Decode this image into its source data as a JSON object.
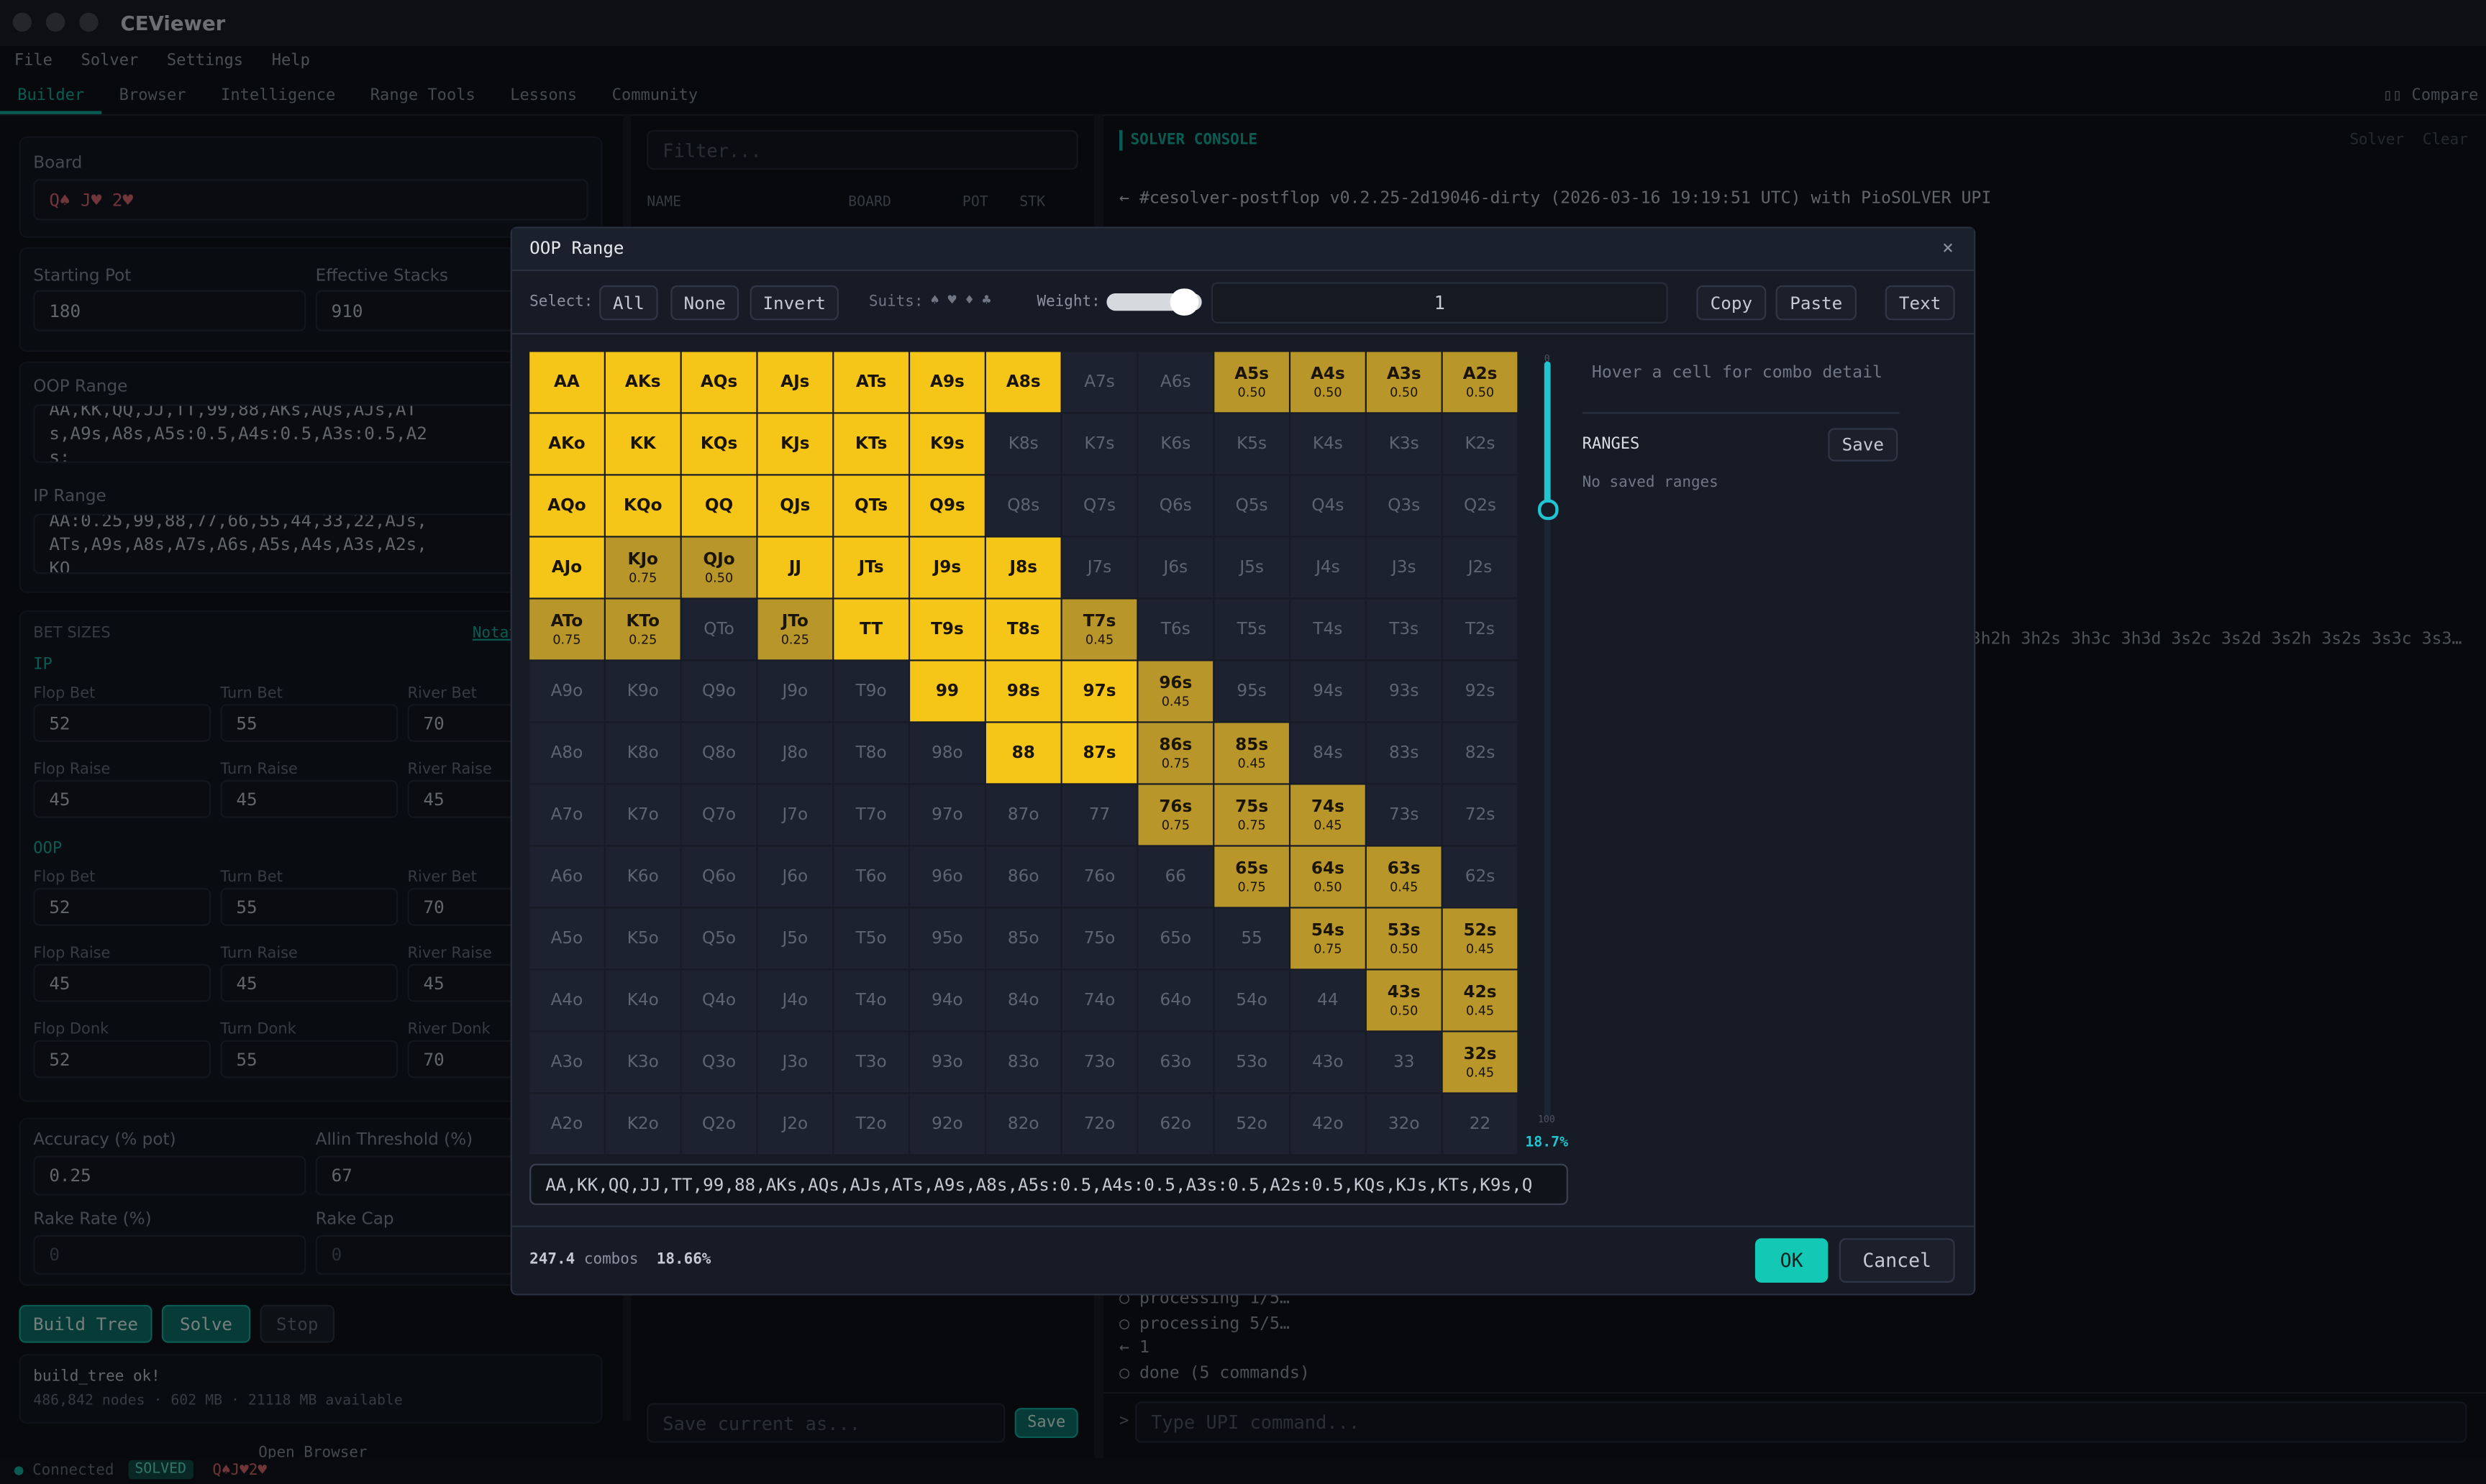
{
  "window": {
    "title": "CEViewer"
  },
  "menu": [
    "File",
    "Solver",
    "Settings",
    "Help"
  ],
  "tabs": [
    "Builder",
    "Browser",
    "Intelligence",
    "Range Tools",
    "Lessons",
    "Community"
  ],
  "compare": "Compare",
  "left": {
    "board_label": "Board",
    "board": "Q♠ J♥ 2♥",
    "starting_pot_label": "Starting Pot",
    "starting_pot": "180",
    "effective_stacks_label": "Effective Stacks",
    "effective_stacks": "910",
    "oop_range_label": "OOP Range",
    "oop_range": "AA,KK,QQ,JJ,TT,99,88,AKs,AQs,AJs,ATs,A9s,A8s,A5s:0.5,A4s:0.5,A3s:0.5,A2s:",
    "ip_range_label": "IP Range",
    "ip_range": "AA:0.25,99,88,77,66,55,44,33,22,AJs,ATs,A9s,A8s,A7s,A6s,A5s,A4s,A3s,A2s,KQ",
    "bet_sizes": "BET SIZES",
    "notation": "Notation",
    "ip_label": "IP",
    "ip_bets": [
      {
        "label": "Flop Bet",
        "value": "52"
      },
      {
        "label": "Turn Bet",
        "value": "55"
      },
      {
        "label": "River Bet",
        "value": "70"
      },
      {
        "label": "Flop Raise",
        "value": "45"
      },
      {
        "label": "Turn Raise",
        "value": "45"
      },
      {
        "label": "River Raise",
        "value": "45"
      }
    ],
    "oop_label": "OOP",
    "oop_bets": [
      {
        "label": "Flop Bet",
        "value": "52"
      },
      {
        "label": "Turn Bet",
        "value": "55"
      },
      {
        "label": "River Bet",
        "value": "70"
      },
      {
        "label": "Flop Raise",
        "value": "45"
      },
      {
        "label": "Turn Raise",
        "value": "45"
      },
      {
        "label": "River Raise",
        "value": "45"
      },
      {
        "label": "Flop Donk",
        "value": "52"
      },
      {
        "label": "Turn Donk",
        "value": "55"
      },
      {
        "label": "River Donk",
        "value": "70"
      }
    ],
    "accuracy_label": "Accuracy (% pot)",
    "accuracy": "0.25",
    "allin_label": "Allin Threshold (%)",
    "allin": "67",
    "rake_rate_label": "Rake Rate (%)",
    "rake_rate": "0",
    "rake_cap_label": "Rake Cap",
    "rake_cap": "0",
    "build_tree": "Build Tree",
    "solve": "Solve",
    "stop": "Stop",
    "log": [
      "build_tree ok!",
      "486,842 nodes · 602 MB · 21118 MB available"
    ],
    "open_browser": "Open Browser"
  },
  "middle": {
    "filter": "Filter...",
    "columns": [
      "NAME",
      "BOARD",
      "POT",
      "STK"
    ],
    "save_as": "Save current as...",
    "save": "Save"
  },
  "console": {
    "title": "SOLVER CONSOLE",
    "solver": "Solver",
    "clear": "Clear",
    "header_line": "← #cesolver-postflop v0.2.25-2d19046-dirty (2026-03-16 19:19:51 UTC) with PioSOLVER UPI",
    "combo_line": "3h2h 3h2s 3h3c 3h3d 3s2c 3s2d 3s2h 3s2s 3s3c 3s3…",
    "lines": [
      "○ processing 1/5…",
      "○ processing 5/5…",
      "← 1",
      "○ done (5 commands)"
    ],
    "prompt": ">",
    "input": "Type UPI command..."
  },
  "status": {
    "connected": "Connected",
    "solved": "SOLVED",
    "board": "Q♠J♥2♥"
  },
  "modal": {
    "title": "OOP Range",
    "close": "×",
    "select": "Select:",
    "all": "All",
    "none": "None",
    "invert": "Invert",
    "suits_label": "Suits:",
    "suits": "♠ ♥ ♦ ♣",
    "weight_label": "Weight:",
    "weight": "1",
    "copy": "Copy",
    "paste": "Paste",
    "text": "Text",
    "palette": {
      "in": "#f5c518",
      "part": "#b9962a",
      "out": "#1d2230"
    },
    "grid": [
      [
        {
          "label": "AA",
          "state": "in"
        },
        {
          "label": "AKs",
          "state": "in"
        },
        {
          "label": "AQs",
          "state": "in"
        },
        {
          "label": "AJs",
          "state": "in"
        },
        {
          "label": "ATs",
          "state": "in"
        },
        {
          "label": "A9s",
          "state": "in"
        },
        {
          "label": "A8s",
          "state": "in"
        },
        {
          "label": "A7s",
          "state": "out"
        },
        {
          "label": "A6s",
          "state": "out"
        },
        {
          "label": "A5s",
          "state": "part",
          "weight": "0.50"
        },
        {
          "label": "A4s",
          "state": "part",
          "weight": "0.50"
        },
        {
          "label": "A3s",
          "state": "part",
          "weight": "0.50"
        },
        {
          "label": "A2s",
          "state": "part",
          "weight": "0.50"
        }
      ],
      [
        {
          "label": "AKo",
          "state": "in"
        },
        {
          "label": "KK",
          "state": "in"
        },
        {
          "label": "KQs",
          "state": "in"
        },
        {
          "label": "KJs",
          "state": "in"
        },
        {
          "label": "KTs",
          "state": "in"
        },
        {
          "label": "K9s",
          "state": "in"
        },
        {
          "label": "K8s",
          "state": "out"
        },
        {
          "label": "K7s",
          "state": "out"
        },
        {
          "label": "K6s",
          "state": "out"
        },
        {
          "label": "K5s",
          "state": "out"
        },
        {
          "label": "K4s",
          "state": "out"
        },
        {
          "label": "K3s",
          "state": "out"
        },
        {
          "label": "K2s",
          "state": "out"
        }
      ],
      [
        {
          "label": "AQo",
          "state": "in"
        },
        {
          "label": "KQo",
          "state": "in"
        },
        {
          "label": "QQ",
          "state": "in"
        },
        {
          "label": "QJs",
          "state": "in"
        },
        {
          "label": "QTs",
          "state": "in"
        },
        {
          "label": "Q9s",
          "state": "in"
        },
        {
          "label": "Q8s",
          "state": "out"
        },
        {
          "label": "Q7s",
          "state": "out"
        },
        {
          "label": "Q6s",
          "state": "out"
        },
        {
          "label": "Q5s",
          "state": "out"
        },
        {
          "label": "Q4s",
          "state": "out"
        },
        {
          "label": "Q3s",
          "state": "out"
        },
        {
          "label": "Q2s",
          "state": "out"
        }
      ],
      [
        {
          "label": "AJo",
          "state": "in"
        },
        {
          "label": "KJo",
          "state": "part",
          "weight": "0.75"
        },
        {
          "label": "QJo",
          "state": "part",
          "weight": "0.50"
        },
        {
          "label": "JJ",
          "state": "in"
        },
        {
          "label": "JTs",
          "state": "in"
        },
        {
          "label": "J9s",
          "state": "in"
        },
        {
          "label": "J8s",
          "state": "in"
        },
        {
          "label": "J7s",
          "state": "out"
        },
        {
          "label": "J6s",
          "state": "out"
        },
        {
          "label": "J5s",
          "state": "out"
        },
        {
          "label": "J4s",
          "state": "out"
        },
        {
          "label": "J3s",
          "state": "out"
        },
        {
          "label": "J2s",
          "state": "out"
        }
      ],
      [
        {
          "label": "ATo",
          "state": "part",
          "weight": "0.75"
        },
        {
          "label": "KTo",
          "state": "part",
          "weight": "0.25"
        },
        {
          "label": "QTo",
          "state": "out"
        },
        {
          "label": "JTo",
          "state": "part",
          "weight": "0.25"
        },
        {
          "label": "TT",
          "state": "in"
        },
        {
          "label": "T9s",
          "state": "in"
        },
        {
          "label": "T8s",
          "state": "in"
        },
        {
          "label": "T7s",
          "state": "part",
          "weight": "0.45"
        },
        {
          "label": "T6s",
          "state": "out"
        },
        {
          "label": "T5s",
          "state": "out"
        },
        {
          "label": "T4s",
          "state": "out"
        },
        {
          "label": "T3s",
          "state": "out"
        },
        {
          "label": "T2s",
          "state": "out"
        }
      ],
      [
        {
          "label": "A9o",
          "state": "out"
        },
        {
          "label": "K9o",
          "state": "out"
        },
        {
          "label": "Q9o",
          "state": "out"
        },
        {
          "label": "J9o",
          "state": "out"
        },
        {
          "label": "T9o",
          "state": "out"
        },
        {
          "label": "99",
          "state": "in"
        },
        {
          "label": "98s",
          "state": "in"
        },
        {
          "label": "97s",
          "state": "in"
        },
        {
          "label": "96s",
          "state": "part",
          "weight": "0.45"
        },
        {
          "label": "95s",
          "state": "out"
        },
        {
          "label": "94s",
          "state": "out"
        },
        {
          "label": "93s",
          "state": "out"
        },
        {
          "label": "92s",
          "state": "out"
        }
      ],
      [
        {
          "label": "A8o",
          "state": "out"
        },
        {
          "label": "K8o",
          "state": "out"
        },
        {
          "label": "Q8o",
          "state": "out"
        },
        {
          "label": "J8o",
          "state": "out"
        },
        {
          "label": "T8o",
          "state": "out"
        },
        {
          "label": "98o",
          "state": "out"
        },
        {
          "label": "88",
          "state": "in"
        },
        {
          "label": "87s",
          "state": "in"
        },
        {
          "label": "86s",
          "state": "part",
          "weight": "0.75"
        },
        {
          "label": "85s",
          "state": "part",
          "weight": "0.45"
        },
        {
          "label": "84s",
          "state": "out"
        },
        {
          "label": "83s",
          "state": "out"
        },
        {
          "label": "82s",
          "state": "out"
        }
      ],
      [
        {
          "label": "A7o",
          "state": "out"
        },
        {
          "label": "K7o",
          "state": "out"
        },
        {
          "label": "Q7o",
          "state": "out"
        },
        {
          "label": "J7o",
          "state": "out"
        },
        {
          "label": "T7o",
          "state": "out"
        },
        {
          "label": "97o",
          "state": "out"
        },
        {
          "label": "87o",
          "state": "out"
        },
        {
          "label": "77",
          "state": "out"
        },
        {
          "label": "76s",
          "state": "part",
          "weight": "0.75"
        },
        {
          "label": "75s",
          "state": "part",
          "weight": "0.75"
        },
        {
          "label": "74s",
          "state": "part",
          "weight": "0.45"
        },
        {
          "label": "73s",
          "state": "out"
        },
        {
          "label": "72s",
          "state": "out"
        }
      ],
      [
        {
          "label": "A6o",
          "state": "out"
        },
        {
          "label": "K6o",
          "state": "out"
        },
        {
          "label": "Q6o",
          "state": "out"
        },
        {
          "label": "J6o",
          "state": "out"
        },
        {
          "label": "T6o",
          "state": "out"
        },
        {
          "label": "96o",
          "state": "out"
        },
        {
          "label": "86o",
          "state": "out"
        },
        {
          "label": "76o",
          "state": "out"
        },
        {
          "label": "66",
          "state": "out"
        },
        {
          "label": "65s",
          "state": "part",
          "weight": "0.75"
        },
        {
          "label": "64s",
          "state": "part",
          "weight": "0.50"
        },
        {
          "label": "63s",
          "state": "part",
          "weight": "0.45"
        },
        {
          "label": "62s",
          "state": "out"
        }
      ],
      [
        {
          "label": "A5o",
          "state": "out"
        },
        {
          "label": "K5o",
          "state": "out"
        },
        {
          "label": "Q5o",
          "state": "out"
        },
        {
          "label": "J5o",
          "state": "out"
        },
        {
          "label": "T5o",
          "state": "out"
        },
        {
          "label": "95o",
          "state": "out"
        },
        {
          "label": "85o",
          "state": "out"
        },
        {
          "label": "75o",
          "state": "out"
        },
        {
          "label": "65o",
          "state": "out"
        },
        {
          "label": "55",
          "state": "out"
        },
        {
          "label": "54s",
          "state": "part",
          "weight": "0.75"
        },
        {
          "label": "53s",
          "state": "part",
          "weight": "0.50"
        },
        {
          "label": "52s",
          "state": "part",
          "weight": "0.45"
        }
      ],
      [
        {
          "label": "A4o",
          "state": "out"
        },
        {
          "label": "K4o",
          "state": "out"
        },
        {
          "label": "Q4o",
          "state": "out"
        },
        {
          "label": "J4o",
          "state": "out"
        },
        {
          "label": "T4o",
          "state": "out"
        },
        {
          "label": "94o",
          "state": "out"
        },
        {
          "label": "84o",
          "state": "out"
        },
        {
          "label": "74o",
          "state": "out"
        },
        {
          "label": "64o",
          "state": "out"
        },
        {
          "label": "54o",
          "state": "out"
        },
        {
          "label": "44",
          "state": "out"
        },
        {
          "label": "43s",
          "state": "part",
          "weight": "0.50"
        },
        {
          "label": "42s",
          "state": "part",
          "weight": "0.45"
        }
      ],
      [
        {
          "label": "A3o",
          "state": "out"
        },
        {
          "label": "K3o",
          "state": "out"
        },
        {
          "label": "Q3o",
          "state": "out"
        },
        {
          "label": "J3o",
          "state": "out"
        },
        {
          "label": "T3o",
          "state": "out"
        },
        {
          "label": "93o",
          "state": "out"
        },
        {
          "label": "83o",
          "state": "out"
        },
        {
          "label": "73o",
          "state": "out"
        },
        {
          "label": "63o",
          "state": "out"
        },
        {
          "label": "53o",
          "state": "out"
        },
        {
          "label": "43o",
          "state": "out"
        },
        {
          "label": "33",
          "state": "out"
        },
        {
          "label": "32s",
          "state": "part",
          "weight": "0.45"
        }
      ],
      [
        {
          "label": "A2o",
          "state": "out"
        },
        {
          "label": "K2o",
          "state": "out"
        },
        {
          "label": "Q2o",
          "state": "out"
        },
        {
          "label": "J2o",
          "state": "out"
        },
        {
          "label": "T2o",
          "state": "out"
        },
        {
          "label": "92o",
          "state": "out"
        },
        {
          "label": "82o",
          "state": "out"
        },
        {
          "label": "72o",
          "state": "out"
        },
        {
          "label": "62o",
          "state": "out"
        },
        {
          "label": "52o",
          "state": "out"
        },
        {
          "label": "42o",
          "state": "out"
        },
        {
          "label": "32o",
          "state": "out"
        },
        {
          "label": "22",
          "state": "out"
        }
      ]
    ],
    "slider_top": "0",
    "slider_bottom": "100",
    "slider_pct": "18.7%",
    "hover_hint": "Hover a cell for combo detail",
    "ranges": "RANGES",
    "ranges_save": "Save",
    "no_ranges": "No saved ranges",
    "range_text": "AA,KK,QQ,JJ,TT,99,88,AKs,AQs,AJs,ATs,A9s,A8s,A5s:0.5,A4s:0.5,A3s:0.5,A2s:0.5,KQs,KJs,KTs,K9s,Q",
    "combos_count": "247.4",
    "combos": "combos",
    "combos_pct": "18.66%",
    "ok": "OK",
    "cancel": "Cancel"
  }
}
